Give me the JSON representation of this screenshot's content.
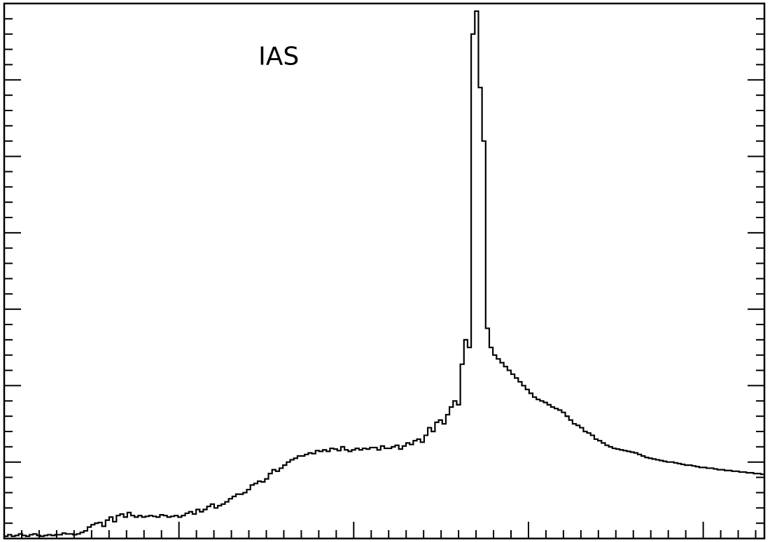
{
  "chart_data": {
    "type": "histogram",
    "title": "",
    "xlabel": "",
    "ylabel": "",
    "axis_tick_labels": "none",
    "grid": false,
    "legend": "none",
    "annotation": {
      "text": "IAS",
      "x_bin": 88,
      "y": 620
    },
    "xlim": [
      0,
      174
    ],
    "ylim": [
      0,
      700
    ],
    "y_major_tick_step": 100,
    "y_minor_ticks_per_major": 5,
    "x_major_tick_step": 40,
    "x_minor_ticks_per_major": 10,
    "series": [
      {
        "values": [
          3,
          5,
          3,
          4,
          6,
          4,
          3,
          5,
          6,
          4,
          3,
          4,
          5,
          4,
          5,
          5,
          7,
          6,
          6,
          5,
          6,
          8,
          10,
          15,
          18,
          20,
          21,
          16,
          24,
          28,
          22,
          30,
          32,
          28,
          34,
          30,
          28,
          30,
          28,
          29,
          30,
          29,
          28,
          31,
          30,
          28,
          29,
          30,
          28,
          30,
          33,
          35,
          32,
          38,
          35,
          38,
          42,
          45,
          40,
          43,
          45,
          48,
          52,
          55,
          58,
          58,
          60,
          64,
          70,
          72,
          75,
          74,
          78,
          85,
          90,
          88,
          92,
          96,
          100,
          103,
          105,
          108,
          108,
          110,
          112,
          111,
          115,
          114,
          116,
          114,
          118,
          117,
          115,
          120,
          116,
          114,
          116,
          118,
          116,
          118,
          117,
          119,
          119,
          116,
          121,
          118,
          118,
          120,
          122,
          117,
          121,
          125,
          123,
          128,
          130,
          126,
          135,
          145,
          140,
          152,
          155,
          150,
          162,
          172,
          180,
          175,
          228,
          260,
          250,
          660,
          690,
          590,
          520,
          275,
          250,
          240,
          235,
          230,
          225,
          220,
          215,
          210,
          205,
          200,
          195,
          190,
          185,
          182,
          180,
          178,
          175,
          172,
          170,
          168,
          165,
          160,
          155,
          150,
          148,
          145,
          140,
          138,
          135,
          130,
          128,
          125,
          122,
          120,
          118,
          117,
          116,
          115,
          114,
          113,
          112,
          110,
          108,
          106,
          105,
          104,
          103,
          102,
          101,
          100,
          100,
          99,
          98,
          97,
          96,
          96,
          95,
          94,
          93,
          93,
          92,
          92,
          91,
          90,
          90,
          89,
          89,
          88,
          88,
          87,
          87,
          86,
          86,
          85,
          85,
          84
        ]
      }
    ]
  }
}
